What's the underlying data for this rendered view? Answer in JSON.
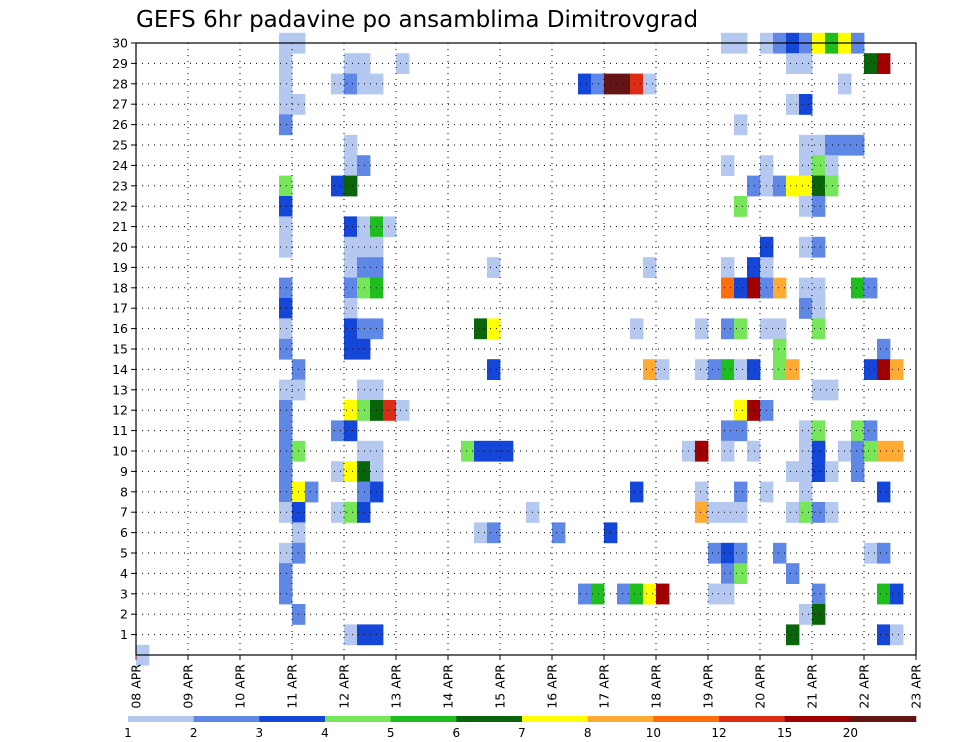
{
  "chart_data": {
    "type": "heatmap",
    "title": "GEFS 6hr padavine po ansamblima Dimitrovgrad",
    "x_tick_labels": [
      "08 APR",
      "09 APR",
      "10 APR",
      "11 APR",
      "12 APR",
      "13 APR",
      "14 APR",
      "15 APR",
      "16 APR",
      "17 APR",
      "18 APR",
      "19 APR",
      "20 APR",
      "21 APR",
      "22 APR",
      "23 APR"
    ],
    "y_tick_labels": [
      "1",
      "2",
      "3",
      "4",
      "5",
      "6",
      "7",
      "8",
      "9",
      "10",
      "11",
      "12",
      "13",
      "14",
      "15",
      "16",
      "17",
      "18",
      "19",
      "20",
      "21",
      "22",
      "23",
      "24",
      "25",
      "26",
      "27",
      "28",
      "29",
      "30"
    ],
    "y_range": [
      0,
      30
    ],
    "x_range": [
      "08 APR 00",
      "23 APR 00"
    ],
    "grid": "dotted",
    "legend_placement": "bottom",
    "levels": [
      "1",
      "2",
      "3",
      "4",
      "5",
      "6",
      "7",
      "8",
      "10",
      "12",
      "15",
      "20"
    ],
    "level_colors": [
      "#b4c8f0",
      "#5f87e6",
      "#1446d7",
      "#78e65a",
      "#1ebe1e",
      "#0a640a",
      "#ffff00",
      "#ffaa32",
      "#ff6e0a",
      "#dc2d14",
      "#a00000",
      "#641414"
    ],
    "cells_note": "Each cell = [x_slot (6-hour step index from 08 APR 00), member row, color class index into level_colors]",
    "cells": [
      [
        0,
        0,
        0
      ],
      [
        11,
        30,
        0
      ],
      [
        12,
        30,
        0
      ],
      [
        45,
        30,
        0
      ],
      [
        46,
        30,
        0
      ],
      [
        48,
        30,
        0
      ],
      [
        49,
        30,
        1
      ],
      [
        50,
        30,
        2
      ],
      [
        51,
        30,
        1
      ],
      [
        52,
        30,
        6
      ],
      [
        53,
        30,
        4
      ],
      [
        54,
        30,
        6
      ],
      [
        55,
        30,
        1
      ],
      [
        11,
        29,
        0
      ],
      [
        16,
        29,
        0
      ],
      [
        17,
        29,
        0
      ],
      [
        20,
        29,
        0
      ],
      [
        50,
        29,
        0
      ],
      [
        51,
        29,
        0
      ],
      [
        56,
        29,
        5
      ],
      [
        57,
        29,
        10
      ],
      [
        11,
        28,
        0
      ],
      [
        15,
        28,
        0
      ],
      [
        16,
        28,
        1
      ],
      [
        17,
        28,
        0
      ],
      [
        18,
        28,
        0
      ],
      [
        34,
        28,
        2
      ],
      [
        35,
        28,
        1
      ],
      [
        36,
        28,
        11
      ],
      [
        37,
        28,
        11
      ],
      [
        38,
        28,
        9
      ],
      [
        39,
        28,
        0
      ],
      [
        54,
        28,
        0
      ],
      [
        11,
        27,
        0
      ],
      [
        12,
        27,
        0
      ],
      [
        50,
        27,
        0
      ],
      [
        51,
        27,
        2
      ],
      [
        11,
        26,
        1
      ],
      [
        46,
        26,
        0
      ],
      [
        16,
        25,
        0
      ],
      [
        51,
        25,
        0
      ],
      [
        52,
        25,
        0
      ],
      [
        53,
        25,
        1
      ],
      [
        54,
        25,
        1
      ],
      [
        55,
        25,
        1
      ],
      [
        16,
        24,
        0
      ],
      [
        17,
        24,
        1
      ],
      [
        45,
        24,
        0
      ],
      [
        48,
        24,
        0
      ],
      [
        51,
        24,
        0
      ],
      [
        52,
        24,
        3
      ],
      [
        53,
        24,
        0
      ],
      [
        11,
        23,
        3
      ],
      [
        15,
        23,
        2
      ],
      [
        16,
        23,
        5
      ],
      [
        47,
        23,
        1
      ],
      [
        48,
        23,
        0
      ],
      [
        49,
        23,
        1
      ],
      [
        50,
        23,
        6
      ],
      [
        51,
        23,
        6
      ],
      [
        52,
        23,
        5
      ],
      [
        53,
        23,
        3
      ],
      [
        11,
        22,
        2
      ],
      [
        46,
        22,
        3
      ],
      [
        51,
        22,
        0
      ],
      [
        52,
        22,
        1
      ],
      [
        11,
        21,
        0
      ],
      [
        16,
        21,
        2
      ],
      [
        17,
        21,
        0
      ],
      [
        18,
        21,
        4
      ],
      [
        19,
        21,
        0
      ],
      [
        11,
        20,
        0
      ],
      [
        16,
        20,
        0
      ],
      [
        17,
        20,
        0
      ],
      [
        18,
        20,
        0
      ],
      [
        48,
        20,
        2
      ],
      [
        51,
        20,
        0
      ],
      [
        52,
        20,
        1
      ],
      [
        16,
        19,
        0
      ],
      [
        17,
        19,
        1
      ],
      [
        18,
        19,
        1
      ],
      [
        27,
        19,
        0
      ],
      [
        39,
        19,
        0
      ],
      [
        45,
        19,
        0
      ],
      [
        47,
        19,
        2
      ],
      [
        48,
        19,
        0
      ],
      [
        11,
        18,
        1
      ],
      [
        16,
        18,
        1
      ],
      [
        17,
        18,
        3
      ],
      [
        18,
        18,
        4
      ],
      [
        45,
        18,
        8
      ],
      [
        46,
        18,
        2
      ],
      [
        47,
        18,
        10
      ],
      [
        48,
        18,
        1
      ],
      [
        49,
        18,
        7
      ],
      [
        51,
        18,
        0
      ],
      [
        52,
        18,
        0
      ],
      [
        55,
        18,
        4
      ],
      [
        56,
        18,
        1
      ],
      [
        11,
        17,
        2
      ],
      [
        16,
        17,
        0
      ],
      [
        51,
        17,
        1
      ],
      [
        52,
        17,
        0
      ],
      [
        11,
        16,
        0
      ],
      [
        16,
        16,
        2
      ],
      [
        17,
        16,
        1
      ],
      [
        18,
        16,
        1
      ],
      [
        26,
        16,
        5
      ],
      [
        27,
        16,
        6
      ],
      [
        38,
        16,
        0
      ],
      [
        43,
        16,
        0
      ],
      [
        45,
        16,
        1
      ],
      [
        46,
        16,
        3
      ],
      [
        48,
        16,
        0
      ],
      [
        49,
        16,
        0
      ],
      [
        52,
        16,
        3
      ],
      [
        11,
        15,
        1
      ],
      [
        16,
        15,
        2
      ],
      [
        17,
        15,
        2
      ],
      [
        49,
        15,
        3
      ],
      [
        57,
        15,
        1
      ],
      [
        12,
        14,
        1
      ],
      [
        27,
        14,
        2
      ],
      [
        39,
        14,
        7
      ],
      [
        40,
        14,
        0
      ],
      [
        43,
        14,
        0
      ],
      [
        44,
        14,
        1
      ],
      [
        45,
        14,
        4
      ],
      [
        46,
        14,
        0
      ],
      [
        47,
        14,
        2
      ],
      [
        49,
        14,
        3
      ],
      [
        50,
        14,
        7
      ],
      [
        56,
        14,
        2
      ],
      [
        57,
        14,
        10
      ],
      [
        58,
        14,
        7
      ],
      [
        11,
        13,
        0
      ],
      [
        12,
        13,
        0
      ],
      [
        17,
        13,
        0
      ],
      [
        18,
        13,
        0
      ],
      [
        52,
        13,
        0
      ],
      [
        53,
        13,
        0
      ],
      [
        11,
        12,
        1
      ],
      [
        16,
        12,
        6
      ],
      [
        17,
        12,
        3
      ],
      [
        18,
        12,
        5
      ],
      [
        19,
        12,
        9
      ],
      [
        20,
        12,
        0
      ],
      [
        46,
        12,
        6
      ],
      [
        47,
        12,
        10
      ],
      [
        48,
        12,
        1
      ],
      [
        11,
        11,
        1
      ],
      [
        15,
        11,
        1
      ],
      [
        16,
        11,
        2
      ],
      [
        45,
        11,
        1
      ],
      [
        46,
        11,
        1
      ],
      [
        51,
        11,
        0
      ],
      [
        52,
        11,
        3
      ],
      [
        55,
        11,
        3
      ],
      [
        56,
        11,
        1
      ],
      [
        11,
        10,
        1
      ],
      [
        12,
        10,
        3
      ],
      [
        17,
        10,
        0
      ],
      [
        18,
        10,
        0
      ],
      [
        25,
        10,
        3
      ],
      [
        26,
        10,
        2
      ],
      [
        27,
        10,
        2
      ],
      [
        28,
        10,
        2
      ],
      [
        42,
        10,
        0
      ],
      [
        43,
        10,
        10
      ],
      [
        45,
        10,
        0
      ],
      [
        47,
        10,
        0
      ],
      [
        51,
        10,
        0
      ],
      [
        52,
        10,
        2
      ],
      [
        54,
        10,
        0
      ],
      [
        55,
        10,
        1
      ],
      [
        56,
        10,
        3
      ],
      [
        57,
        10,
        7
      ],
      [
        58,
        10,
        7
      ],
      [
        11,
        9,
        1
      ],
      [
        15,
        9,
        0
      ],
      [
        16,
        9,
        6
      ],
      [
        17,
        9,
        5
      ],
      [
        18,
        9,
        0
      ],
      [
        50,
        9,
        0
      ],
      [
        51,
        9,
        0
      ],
      [
        52,
        9,
        2
      ],
      [
        53,
        9,
        0
      ],
      [
        55,
        9,
        1
      ],
      [
        11,
        8,
        1
      ],
      [
        12,
        8,
        6
      ],
      [
        13,
        8,
        1
      ],
      [
        17,
        8,
        1
      ],
      [
        18,
        8,
        2
      ],
      [
        38,
        8,
        2
      ],
      [
        43,
        8,
        0
      ],
      [
        46,
        8,
        1
      ],
      [
        48,
        8,
        0
      ],
      [
        51,
        8,
        0
      ],
      [
        57,
        8,
        2
      ],
      [
        11,
        7,
        0
      ],
      [
        12,
        7,
        2
      ],
      [
        15,
        7,
        0
      ],
      [
        16,
        7,
        3
      ],
      [
        17,
        7,
        2
      ],
      [
        30,
        7,
        0
      ],
      [
        43,
        7,
        7
      ],
      [
        44,
        7,
        0
      ],
      [
        45,
        7,
        0
      ],
      [
        46,
        7,
        0
      ],
      [
        50,
        7,
        0
      ],
      [
        51,
        7,
        3
      ],
      [
        52,
        7,
        1
      ],
      [
        53,
        7,
        0
      ],
      [
        12,
        6,
        0
      ],
      [
        26,
        6,
        0
      ],
      [
        27,
        6,
        1
      ],
      [
        32,
        6,
        1
      ],
      [
        36,
        6,
        2
      ],
      [
        11,
        5,
        0
      ],
      [
        12,
        5,
        1
      ],
      [
        44,
        5,
        1
      ],
      [
        45,
        5,
        2
      ],
      [
        46,
        5,
        1
      ],
      [
        49,
        5,
        1
      ],
      [
        56,
        5,
        0
      ],
      [
        57,
        5,
        1
      ],
      [
        11,
        4,
        1
      ],
      [
        45,
        4,
        1
      ],
      [
        46,
        4,
        3
      ],
      [
        50,
        4,
        1
      ],
      [
        11,
        3,
        1
      ],
      [
        34,
        3,
        1
      ],
      [
        35,
        3,
        4
      ],
      [
        37,
        3,
        1
      ],
      [
        38,
        3,
        4
      ],
      [
        39,
        3,
        6
      ],
      [
        40,
        3,
        10
      ],
      [
        44,
        3,
        0
      ],
      [
        45,
        3,
        0
      ],
      [
        52,
        3,
        1
      ],
      [
        57,
        3,
        4
      ],
      [
        58,
        3,
        2
      ],
      [
        12,
        2,
        1
      ],
      [
        51,
        2,
        0
      ],
      [
        52,
        2,
        5
      ],
      [
        16,
        1,
        0
      ],
      [
        17,
        1,
        2
      ],
      [
        18,
        1,
        2
      ],
      [
        50,
        1,
        5
      ],
      [
        57,
        1,
        2
      ],
      [
        58,
        1,
        0
      ]
    ]
  }
}
